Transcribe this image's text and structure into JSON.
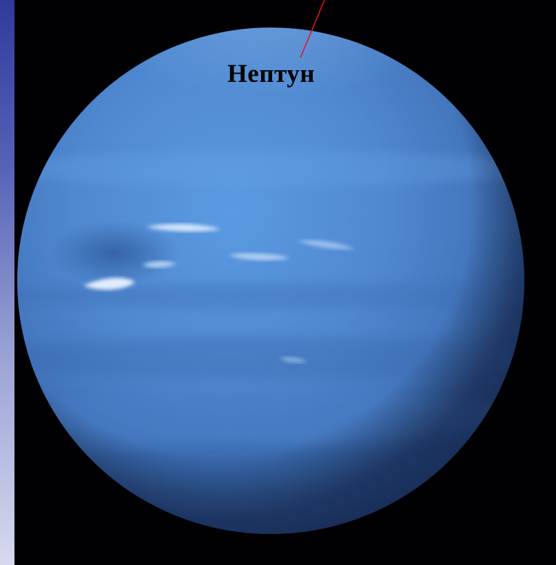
{
  "planet_label": "Нептун",
  "colors": {
    "background": "#000000",
    "sidebar_top": "#2f3a9c",
    "sidebar_bottom": "#d6d9ee",
    "planet_base": "#4f86cf",
    "pointer_line": "#e0141e"
  },
  "image": {
    "subject": "planet-photo"
  }
}
